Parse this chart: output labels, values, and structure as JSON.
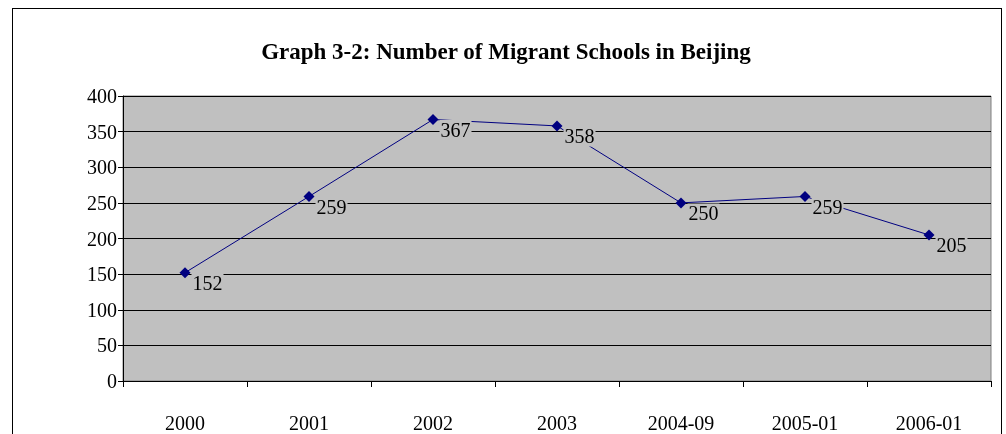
{
  "chart_data": {
    "type": "line",
    "title": "Graph 3-2: Number of Migrant Schools in Beijing",
    "categories": [
      "2000",
      "2001",
      "2002",
      "2003",
      "2004-09",
      "2005-01",
      "2006-01"
    ],
    "values": [
      152,
      259,
      367,
      358,
      250,
      259,
      205
    ],
    "color": "#000080",
    "marker": "diamond",
    "line_style": "solid",
    "data_labels": true,
    "ylim": [
      0,
      400
    ],
    "yticks": [
      0,
      50,
      100,
      150,
      200,
      250,
      300,
      350,
      400
    ],
    "grid": "y"
  }
}
